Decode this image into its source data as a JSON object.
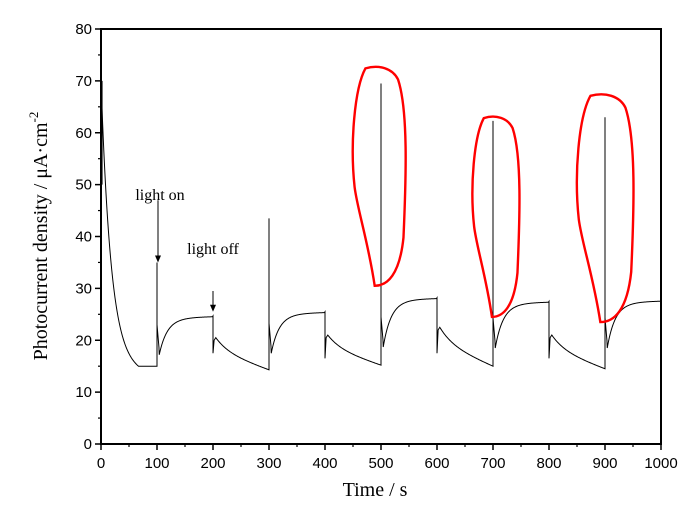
{
  "chart_data": {
    "type": "line",
    "title": "",
    "xlabel": "Time / s",
    "ylabel_main": "Photocurrent density / μA·cm",
    "ylabel_sup": "-2",
    "xlim": [
      0,
      1000
    ],
    "ylim": [
      0,
      80
    ],
    "xticks": [
      0,
      100,
      200,
      300,
      400,
      500,
      600,
      700,
      800,
      900,
      1000
    ],
    "xtick_labels": [
      "0",
      "100",
      "200",
      "300",
      "400",
      "500",
      "600",
      "700",
      "800",
      "900",
      "1000"
    ],
    "yticks": [
      0,
      10,
      20,
      30,
      40,
      50,
      60,
      70,
      80
    ],
    "ytick_labels": [
      "0",
      "10",
      "20",
      "30",
      "40",
      "50",
      "60",
      "70",
      "80"
    ],
    "grid": false,
    "legend": "none",
    "annotations": [
      {
        "text": "light on",
        "arrow_x": 100,
        "arrow_from": 47,
        "arrow_to": 35
      },
      {
        "text": "light off",
        "arrow_x": 200,
        "arrow_from": 29.5,
        "arrow_to": 25.5
      }
    ],
    "initial_segment": {
      "start": 70,
      "end": 15
    },
    "cycles": [
      {
        "on": 100,
        "off": 200,
        "spike": 35,
        "dip": 18,
        "plateau": 24.7,
        "off_drop": 17.5,
        "off_bump": 20.5,
        "off_end": 14.3
      },
      {
        "on": 300,
        "off": 400,
        "spike": 43.5,
        "dip": 18.3,
        "plateau": 25.5,
        "off_drop": 16.5,
        "off_bump": 21.0,
        "off_end": 15.2
      },
      {
        "on": 500,
        "off": 600,
        "spike": 69.5,
        "dip": 19.5,
        "plateau": 28.2,
        "off_drop": 17.5,
        "off_bump": 22.5,
        "off_end": 15.0
      },
      {
        "on": 700,
        "off": 800,
        "spike": 62.3,
        "dip": 19.3,
        "plateau": 27.5,
        "off_drop": 16.5,
        "off_bump": 21.0,
        "off_end": 14.5
      },
      {
        "on": 900,
        "off": 1000,
        "spike": 63.0,
        "dip": 19.3,
        "plateau": 27.7,
        "off_drop": null,
        "off_bump": null,
        "off_end": null
      }
    ],
    "highlight_color": "#ff0000",
    "line_color": "#000000",
    "highlight_loops": [
      {
        "t_min": 448,
        "t_max": 545,
        "y_min": 30.5,
        "y_max": 72.8
      },
      {
        "t_min": 662,
        "t_max": 748,
        "y_min": 24.5,
        "y_max": 63.2
      },
      {
        "t_min": 848,
        "t_max": 952,
        "y_min": 23.5,
        "y_max": 67.5
      }
    ]
  }
}
